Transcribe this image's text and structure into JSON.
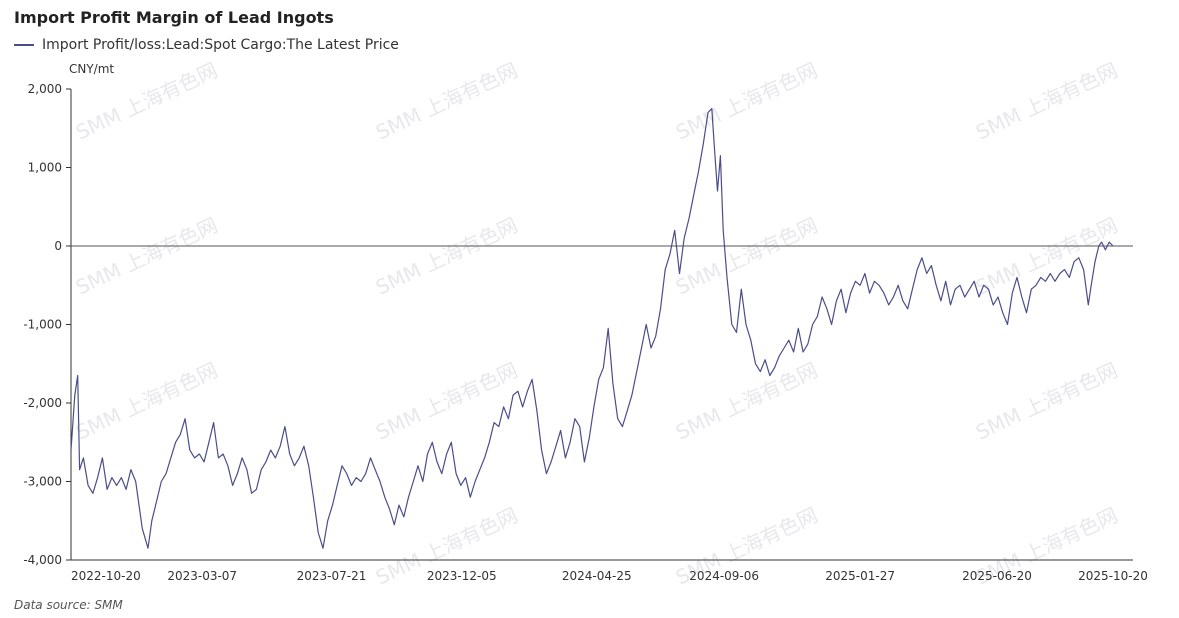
{
  "title": "Import Profit Margin of Lead Ingots",
  "legend": {
    "label": "Import Profit/loss:Lead:Spot Cargo:The Latest Price"
  },
  "unit": "CNY/mt",
  "source": "Data source:  SMM",
  "watermark": "SMM 上海有色网",
  "colors": {
    "series": "#4b4d8a",
    "axis": "#333333",
    "zero_line": "#555555"
  },
  "chart_data": {
    "type": "line",
    "title": "Import Profit Margin of Lead Ingots",
    "ylabel": "CNY/mt",
    "ylim": [
      -4000,
      2000
    ],
    "yticks": [
      2000,
      1000,
      0,
      -1000,
      -2000,
      -3000,
      -4000
    ],
    "ytick_labels": [
      "2,000",
      "1,000",
      "0",
      "-1,000",
      "-2,000",
      "-3,000",
      "-4,000"
    ],
    "xlim": [
      "2022-10-20",
      "2025-11-10"
    ],
    "xtick_labels": [
      "2022-10-20",
      "2023-03-07",
      "2023-07-21",
      "2023-12-05",
      "2024-04-25",
      "2024-09-06",
      "2025-01-27",
      "2025-06-20",
      "2025-10-20"
    ],
    "reference_lines": [
      0
    ],
    "grid": false,
    "legend_position": "top-left",
    "series": [
      {
        "name": "Import Profit/loss:Lead:Spot Cargo:The Latest Price",
        "points": [
          [
            "2022-10-20",
            -2600
          ],
          [
            "2022-10-24",
            -1900
          ],
          [
            "2022-10-27",
            -1650
          ],
          [
            "2022-10-29",
            -2850
          ],
          [
            "2022-11-02",
            -2700
          ],
          [
            "2022-11-07",
            -3050
          ],
          [
            "2022-11-12",
            -3150
          ],
          [
            "2022-11-17",
            -2950
          ],
          [
            "2022-11-22",
            -2700
          ],
          [
            "2022-11-27",
            -3100
          ],
          [
            "2022-12-02",
            -2950
          ],
          [
            "2022-12-07",
            -3050
          ],
          [
            "2022-12-12",
            -2950
          ],
          [
            "2022-12-17",
            -3100
          ],
          [
            "2022-12-22",
            -2850
          ],
          [
            "2022-12-27",
            -3000
          ],
          [
            "2023-01-03",
            -3600
          ],
          [
            "2023-01-09",
            -3850
          ],
          [
            "2023-01-13",
            -3500
          ],
          [
            "2023-01-18",
            -3250
          ],
          [
            "2023-01-23",
            -3000
          ],
          [
            "2023-01-28",
            -2900
          ],
          [
            "2023-02-02",
            -2700
          ],
          [
            "2023-02-07",
            -2500
          ],
          [
            "2023-02-12",
            -2400
          ],
          [
            "2023-02-17",
            -2200
          ],
          [
            "2023-02-22",
            -2600
          ],
          [
            "2023-02-27",
            -2700
          ],
          [
            "2023-03-04",
            -2650
          ],
          [
            "2023-03-09",
            -2750
          ],
          [
            "2023-03-14",
            -2500
          ],
          [
            "2023-03-19",
            -2250
          ],
          [
            "2023-03-24",
            -2700
          ],
          [
            "2023-03-29",
            -2650
          ],
          [
            "2023-04-03",
            -2800
          ],
          [
            "2023-04-08",
            -3050
          ],
          [
            "2023-04-13",
            -2900
          ],
          [
            "2023-04-18",
            -2700
          ],
          [
            "2023-04-23",
            -2850
          ],
          [
            "2023-04-28",
            -3150
          ],
          [
            "2023-05-03",
            -3100
          ],
          [
            "2023-05-08",
            -2850
          ],
          [
            "2023-05-13",
            -2750
          ],
          [
            "2023-05-18",
            -2600
          ],
          [
            "2023-05-23",
            -2700
          ],
          [
            "2023-05-28",
            -2550
          ],
          [
            "2023-06-02",
            -2300
          ],
          [
            "2023-06-07",
            -2650
          ],
          [
            "2023-06-12",
            -2800
          ],
          [
            "2023-06-17",
            -2700
          ],
          [
            "2023-06-22",
            -2550
          ],
          [
            "2023-06-27",
            -2800
          ],
          [
            "2023-07-02",
            -3200
          ],
          [
            "2023-07-07",
            -3650
          ],
          [
            "2023-07-12",
            -3850
          ],
          [
            "2023-07-17",
            -3500
          ],
          [
            "2023-07-22",
            -3300
          ],
          [
            "2023-07-27",
            -3050
          ],
          [
            "2023-08-01",
            -2800
          ],
          [
            "2023-08-06",
            -2900
          ],
          [
            "2023-08-11",
            -3050
          ],
          [
            "2023-08-16",
            -2950
          ],
          [
            "2023-08-21",
            -3000
          ],
          [
            "2023-08-26",
            -2900
          ],
          [
            "2023-08-31",
            -2700
          ],
          [
            "2023-09-05",
            -2850
          ],
          [
            "2023-09-10",
            -3000
          ],
          [
            "2023-09-15",
            -3200
          ],
          [
            "2023-09-20",
            -3350
          ],
          [
            "2023-09-25",
            -3550
          ],
          [
            "2023-09-30",
            -3300
          ],
          [
            "2023-10-05",
            -3450
          ],
          [
            "2023-10-10",
            -3200
          ],
          [
            "2023-10-15",
            -3000
          ],
          [
            "2023-10-20",
            -2800
          ],
          [
            "2023-10-25",
            -3000
          ],
          [
            "2023-10-30",
            -2650
          ],
          [
            "2023-11-04",
            -2500
          ],
          [
            "2023-11-09",
            -2750
          ],
          [
            "2023-11-14",
            -2900
          ],
          [
            "2023-11-19",
            -2650
          ],
          [
            "2023-11-24",
            -2500
          ],
          [
            "2023-11-29",
            -2900
          ],
          [
            "2023-12-04",
            -3050
          ],
          [
            "2023-12-09",
            -2950
          ],
          [
            "2023-12-14",
            -3200
          ],
          [
            "2023-12-19",
            -3000
          ],
          [
            "2023-12-24",
            -2850
          ],
          [
            "2023-12-29",
            -2700
          ],
          [
            "2024-01-03",
            -2500
          ],
          [
            "2024-01-08",
            -2250
          ],
          [
            "2024-01-13",
            -2300
          ],
          [
            "2024-01-18",
            -2050
          ],
          [
            "2024-01-23",
            -2200
          ],
          [
            "2024-01-28",
            -1900
          ],
          [
            "2024-02-02",
            -1850
          ],
          [
            "2024-02-07",
            -2050
          ],
          [
            "2024-02-12",
            -1850
          ],
          [
            "2024-02-17",
            -1700
          ],
          [
            "2024-02-22",
            -2100
          ],
          [
            "2024-02-27",
            -2600
          ],
          [
            "2024-03-03",
            -2900
          ],
          [
            "2024-03-08",
            -2750
          ],
          [
            "2024-03-13",
            -2550
          ],
          [
            "2024-03-18",
            -2350
          ],
          [
            "2024-03-23",
            -2700
          ],
          [
            "2024-03-28",
            -2500
          ],
          [
            "2024-04-02",
            -2200
          ],
          [
            "2024-04-07",
            -2300
          ],
          [
            "2024-04-12",
            -2750
          ],
          [
            "2024-04-17",
            -2450
          ],
          [
            "2024-04-22",
            -2050
          ],
          [
            "2024-04-27",
            -1700
          ],
          [
            "2024-05-02",
            -1550
          ],
          [
            "2024-05-07",
            -1050
          ],
          [
            "2024-05-12",
            -1750
          ],
          [
            "2024-05-17",
            -2200
          ],
          [
            "2024-05-22",
            -2300
          ],
          [
            "2024-05-27",
            -2100
          ],
          [
            "2024-06-01",
            -1900
          ],
          [
            "2024-06-06",
            -1600
          ],
          [
            "2024-06-11",
            -1300
          ],
          [
            "2024-06-16",
            -1000
          ],
          [
            "2024-06-21",
            -1300
          ],
          [
            "2024-06-26",
            -1150
          ],
          [
            "2024-07-01",
            -800
          ],
          [
            "2024-07-06",
            -300
          ],
          [
            "2024-07-11",
            -100
          ],
          [
            "2024-07-16",
            200
          ],
          [
            "2024-07-21",
            -350
          ],
          [
            "2024-07-26",
            100
          ],
          [
            "2024-07-31",
            350
          ],
          [
            "2024-08-05",
            650
          ],
          [
            "2024-08-10",
            950
          ],
          [
            "2024-08-15",
            1300
          ],
          [
            "2024-08-20",
            1700
          ],
          [
            "2024-08-24",
            1750
          ],
          [
            "2024-08-27",
            1200
          ],
          [
            "2024-08-30",
            700
          ],
          [
            "2024-09-02",
            1150
          ],
          [
            "2024-09-05",
            200
          ],
          [
            "2024-09-09",
            -400
          ],
          [
            "2024-09-14",
            -1000
          ],
          [
            "2024-09-19",
            -1100
          ],
          [
            "2024-09-24",
            -550
          ],
          [
            "2024-09-29",
            -1000
          ],
          [
            "2024-10-04",
            -1200
          ],
          [
            "2024-10-09",
            -1500
          ],
          [
            "2024-10-14",
            -1600
          ],
          [
            "2024-10-19",
            -1450
          ],
          [
            "2024-10-24",
            -1650
          ],
          [
            "2024-10-29",
            -1550
          ],
          [
            "2024-11-03",
            -1400
          ],
          [
            "2024-11-08",
            -1300
          ],
          [
            "2024-11-13",
            -1200
          ],
          [
            "2024-11-18",
            -1350
          ],
          [
            "2024-11-23",
            -1050
          ],
          [
            "2024-11-28",
            -1350
          ],
          [
            "2024-12-03",
            -1250
          ],
          [
            "2024-12-08",
            -1000
          ],
          [
            "2024-12-13",
            -900
          ],
          [
            "2024-12-18",
            -650
          ],
          [
            "2024-12-23",
            -800
          ],
          [
            "2024-12-28",
            -1000
          ],
          [
            "2025-01-02",
            -700
          ],
          [
            "2025-01-07",
            -550
          ],
          [
            "2025-01-12",
            -850
          ],
          [
            "2025-01-17",
            -600
          ],
          [
            "2025-01-22",
            -450
          ],
          [
            "2025-01-27",
            -500
          ],
          [
            "2025-02-01",
            -350
          ],
          [
            "2025-02-06",
            -600
          ],
          [
            "2025-02-11",
            -450
          ],
          [
            "2025-02-16",
            -500
          ],
          [
            "2025-02-21",
            -600
          ],
          [
            "2025-02-26",
            -750
          ],
          [
            "2025-03-03",
            -650
          ],
          [
            "2025-03-08",
            -500
          ],
          [
            "2025-03-13",
            -700
          ],
          [
            "2025-03-18",
            -800
          ],
          [
            "2025-03-23",
            -550
          ],
          [
            "2025-03-28",
            -300
          ],
          [
            "2025-04-02",
            -150
          ],
          [
            "2025-04-07",
            -350
          ],
          [
            "2025-04-12",
            -250
          ],
          [
            "2025-04-17",
            -500
          ],
          [
            "2025-04-22",
            -700
          ],
          [
            "2025-04-27",
            -450
          ],
          [
            "2025-05-02",
            -750
          ],
          [
            "2025-05-07",
            -550
          ],
          [
            "2025-05-12",
            -500
          ],
          [
            "2025-05-17",
            -650
          ],
          [
            "2025-05-22",
            -550
          ],
          [
            "2025-05-27",
            -450
          ],
          [
            "2025-06-01",
            -650
          ],
          [
            "2025-06-06",
            -500
          ],
          [
            "2025-06-11",
            -550
          ],
          [
            "2025-06-16",
            -750
          ],
          [
            "2025-06-21",
            -650
          ],
          [
            "2025-06-26",
            -850
          ],
          [
            "2025-07-01",
            -1000
          ],
          [
            "2025-07-06",
            -600
          ],
          [
            "2025-07-11",
            -400
          ],
          [
            "2025-07-16",
            -650
          ],
          [
            "2025-07-21",
            -850
          ],
          [
            "2025-07-26",
            -550
          ],
          [
            "2025-07-31",
            -500
          ],
          [
            "2025-08-05",
            -400
          ],
          [
            "2025-08-10",
            -450
          ],
          [
            "2025-08-15",
            -350
          ],
          [
            "2025-08-20",
            -450
          ],
          [
            "2025-08-25",
            -350
          ],
          [
            "2025-08-30",
            -300
          ],
          [
            "2025-09-04",
            -400
          ],
          [
            "2025-09-09",
            -200
          ],
          [
            "2025-09-14",
            -150
          ],
          [
            "2025-09-19",
            -300
          ],
          [
            "2025-09-24",
            -750
          ],
          [
            "2025-09-27",
            -500
          ],
          [
            "2025-10-01",
            -200
          ],
          [
            "2025-10-05",
            0
          ],
          [
            "2025-10-08",
            50
          ],
          [
            "2025-10-12",
            -50
          ],
          [
            "2025-10-16",
            50
          ],
          [
            "2025-10-20",
            0
          ]
        ]
      }
    ]
  }
}
